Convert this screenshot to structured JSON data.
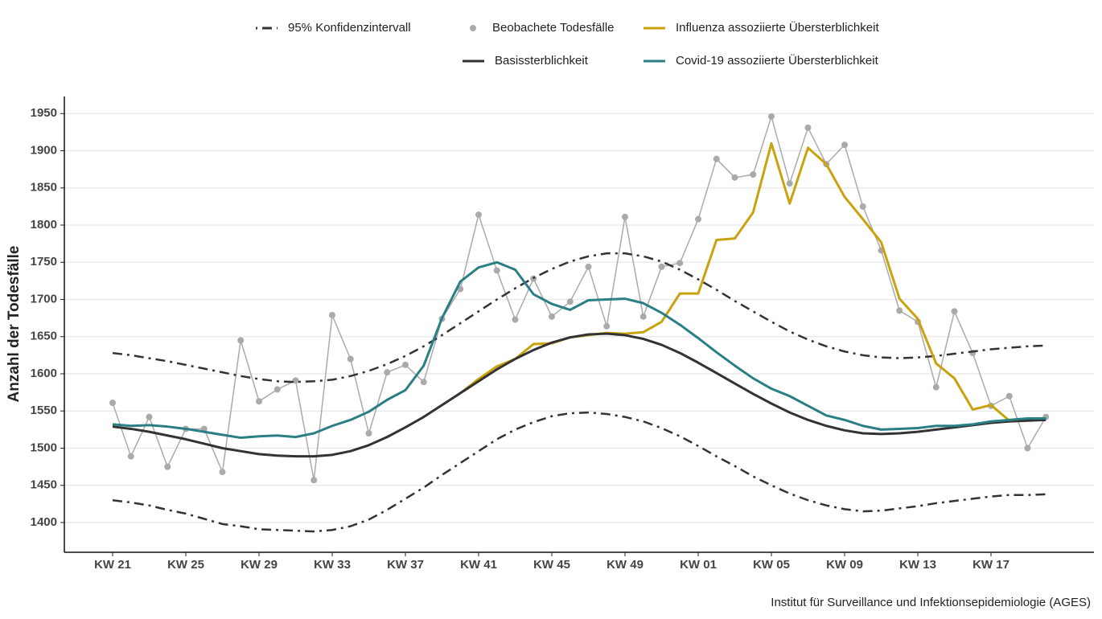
{
  "chart_data": {
    "type": "line",
    "y_label": "Anzahl der Todesfälle",
    "source": "Institut für Surveillance und Infektionsepidemiologie (AGES)",
    "categories": [
      "KW 21",
      null,
      null,
      null,
      "KW 25",
      null,
      null,
      null,
      "KW 29",
      null,
      null,
      null,
      "KW 33",
      null,
      null,
      null,
      "KW 37",
      null,
      null,
      null,
      "KW 41",
      null,
      null,
      null,
      "KW 45",
      null,
      null,
      null,
      "KW 49",
      null,
      null,
      null,
      "KW 01",
      null,
      null,
      null,
      "KW 05",
      null,
      null,
      null,
      "KW 09",
      null,
      null,
      null,
      "KW 13",
      null,
      null,
      null,
      "KW 17",
      null,
      null,
      null
    ],
    "ylim": [
      1360,
      1973
    ],
    "yticks": [
      1400,
      1450,
      1500,
      1550,
      1600,
      1650,
      1700,
      1750,
      1800,
      1850,
      1900,
      1950
    ],
    "grid": true,
    "legend": "top",
    "series": [
      {
        "name": "95% Konfidenzintervall",
        "color": "#333333",
        "style": "dashdot",
        "upper": [
          1628,
          1625,
          1621,
          1617,
          1612,
          1607,
          1602,
          1597,
          1593,
          1590,
          1589,
          1590,
          1592,
          1597,
          1604,
          1613,
          1624,
          1637,
          1652,
          1668,
          1684,
          1700,
          1715,
          1729,
          1741,
          1751,
          1758,
          1762,
          1762,
          1758,
          1751,
          1740,
          1727,
          1713,
          1698,
          1684,
          1670,
          1657,
          1646,
          1637,
          1630,
          1625,
          1622,
          1621,
          1622,
          1624,
          1627,
          1630,
          1633,
          1635,
          1637,
          1638
        ],
        "lower": [
          1430,
          1427,
          1423,
          1417,
          1412,
          1405,
          1398,
          1395,
          1391,
          1390,
          1389,
          1388,
          1390,
          1395,
          1404,
          1417,
          1432,
          1447,
          1464,
          1480,
          1496,
          1512,
          1525,
          1535,
          1543,
          1547,
          1548,
          1546,
          1542,
          1536,
          1527,
          1516,
          1503,
          1489,
          1476,
          1462,
          1450,
          1439,
          1430,
          1423,
          1418,
          1415,
          1416,
          1419,
          1422,
          1426,
          1429,
          1432,
          1435,
          1437,
          1437,
          1438
        ]
      },
      {
        "name": "Beobachete Todesfälle",
        "color": "#aaaaaa",
        "style": "points",
        "values": [
          1561,
          1489,
          1542,
          1475,
          1526,
          1526,
          1468,
          1645,
          1563,
          1579,
          1591,
          1457,
          1679,
          1620,
          1520,
          1602,
          1612,
          1589,
          1674,
          1714,
          1814,
          1739,
          1673,
          1728,
          1677,
          1697,
          1744,
          1664,
          1811,
          1677,
          1744,
          1749,
          1808,
          1889,
          1864,
          1868,
          1946,
          1856,
          1931,
          1882,
          1908,
          1825,
          1766,
          1685,
          1670,
          1582,
          1684,
          1628,
          1557,
          1570,
          1500,
          1542
        ]
      },
      {
        "name": "Influenza assoziierte Übersterblichkeit",
        "color": "#c9a30e",
        "style": "line",
        "values": [
          null,
          null,
          null,
          null,
          null,
          null,
          null,
          null,
          null,
          null,
          null,
          null,
          null,
          null,
          null,
          null,
          null,
          null,
          null,
          1574,
          1593,
          1610,
          1620,
          1640,
          1641,
          1649,
          1652,
          1655,
          1654,
          1656,
          1670,
          1708,
          1708,
          1780,
          1782,
          1817,
          1910,
          1829,
          1904,
          1882,
          1838,
          1808,
          1777,
          1701,
          1674,
          1614,
          1594,
          1552,
          1558,
          1537,
          null,
          null
        ]
      },
      {
        "name": "Basissterblichkeit",
        "color": "#333333",
        "style": "line",
        "values": [
          1529,
          1526,
          1522,
          1517,
          1512,
          1506,
          1500,
          1496,
          1492,
          1490,
          1489,
          1489,
          1491,
          1496,
          1504,
          1515,
          1528,
          1542,
          1558,
          1574,
          1590,
          1606,
          1620,
          1632,
          1642,
          1649,
          1653,
          1654,
          1652,
          1647,
          1639,
          1628,
          1615,
          1601,
          1587,
          1573,
          1560,
          1548,
          1538,
          1530,
          1524,
          1520,
          1519,
          1520,
          1522,
          1525,
          1528,
          1531,
          1534,
          1536,
          1537,
          1538
        ]
      },
      {
        "name": "Covid-19 assoziierte Übersterblichkeit",
        "color": "#2a7f85",
        "style": "line",
        "values": [
          1532,
          1530,
          1531,
          1529,
          1526,
          1522,
          1518,
          1514,
          1516,
          1517,
          1515,
          1520,
          1530,
          1538,
          1549,
          1565,
          1578,
          1611,
          1675,
          1724,
          1743,
          1750,
          1740,
          1707,
          1694,
          1686,
          1699,
          1700,
          1701,
          1695,
          1682,
          1666,
          1648,
          1629,
          1611,
          1594,
          1580,
          1570,
          1557,
          1544,
          1538,
          1530,
          1525,
          1526,
          1527,
          1530,
          1530,
          1532,
          1536,
          1538,
          1540,
          1540
        ]
      }
    ]
  }
}
